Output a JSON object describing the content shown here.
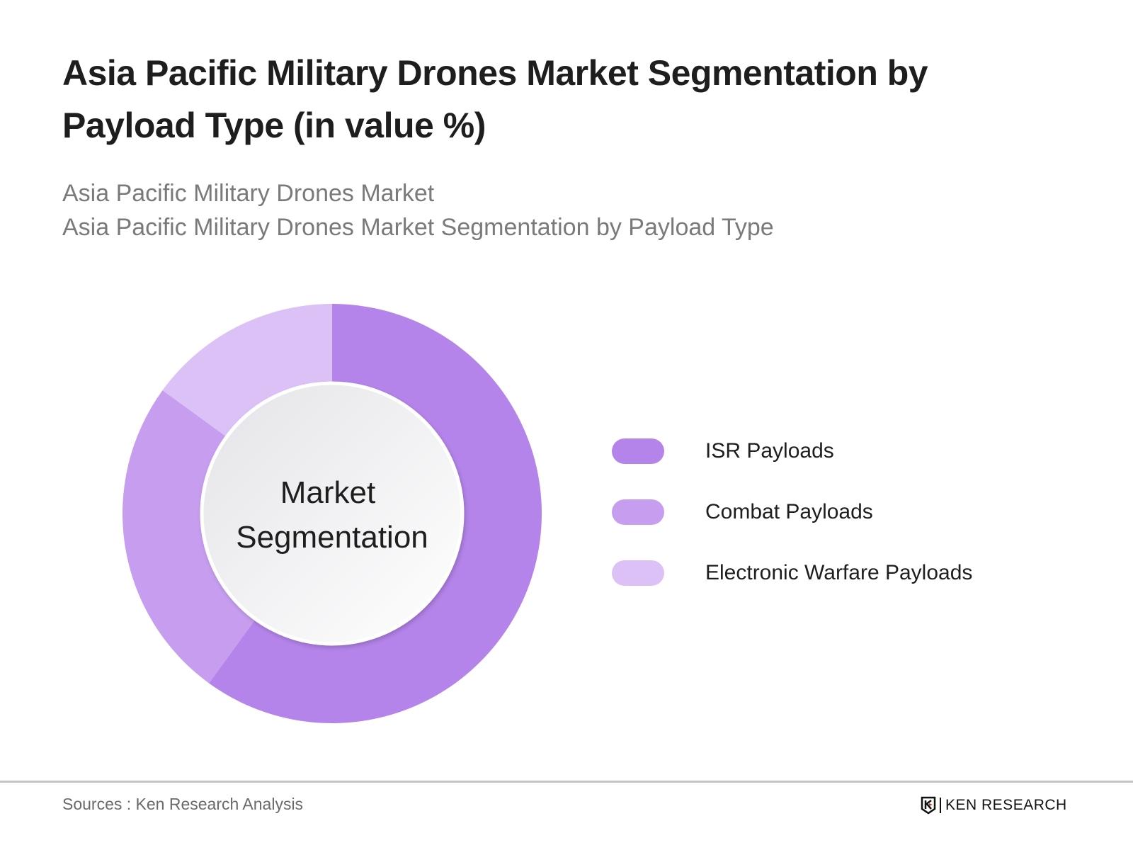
{
  "header": {
    "title": "Asia Pacific Military Drones Market Segmentation by Payload Type (in value %)",
    "subtitle_1": "Asia Pacific Military Drones Market",
    "subtitle_2": "Asia Pacific Military Drones Market Segmentation by Payload Type"
  },
  "chart_data": {
    "type": "pie",
    "variant": "donut",
    "center_label_1": "Market",
    "center_label_2": "Segmentation",
    "categories": [
      "ISR Payloads",
      "Combat Payloads",
      "Electronic Warfare Payloads"
    ],
    "values": [
      60,
      25,
      15
    ],
    "colors": [
      "#b484ea",
      "#c69def",
      "#dcc1f6"
    ],
    "legend_placement": "right"
  },
  "footer": {
    "source": "Sources : Ken Research Analysis",
    "logo_text": "KEN RESEARCH"
  }
}
